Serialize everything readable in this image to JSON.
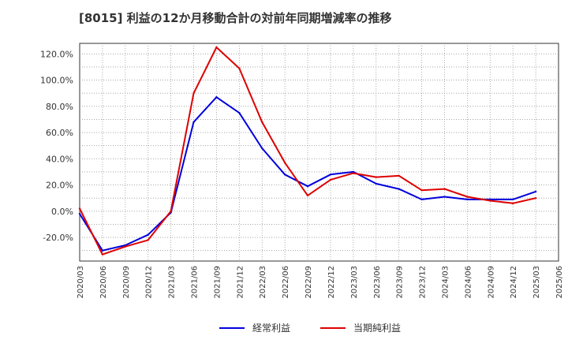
{
  "chart_data": {
    "type": "line",
    "title": "[8015]  利益の12か月移動合計の対前年同期増減率の推移",
    "xlabel": "",
    "ylabel": "",
    "ylim": [
      -38,
      128
    ],
    "grid": true,
    "legend_position": "bottom",
    "y_ticks": [
      "120.0%",
      "100.0%",
      "80.0%",
      "60.0%",
      "40.0%",
      "20.0%",
      "0.0%",
      "-20.0%"
    ],
    "y_tick_values": [
      120,
      100,
      80,
      60,
      40,
      20,
      0,
      -20
    ],
    "x": [
      "2020/03",
      "2020/06",
      "2020/09",
      "2020/12",
      "2021/03",
      "2021/06",
      "2021/09",
      "2021/12",
      "2022/03",
      "2022/06",
      "2022/09",
      "2022/12",
      "2023/03",
      "2023/06",
      "2023/09",
      "2023/12",
      "2024/03",
      "2024/06",
      "2024/09",
      "2024/12",
      "2025/03",
      "2025/06"
    ],
    "series": [
      {
        "name": "経常利益",
        "color": "#0000dd",
        "values": [
          -2,
          -30,
          -26,
          -18,
          -1,
          68,
          87,
          75,
          48,
          28,
          19,
          28,
          30,
          21,
          17,
          9,
          11,
          9,
          9,
          9,
          15,
          null
        ]
      },
      {
        "name": "当期純利益",
        "color": "#dd0000",
        "values": [
          2,
          -33,
          -27,
          -22,
          0,
          90,
          125,
          109,
          68,
          37,
          12,
          24,
          29,
          26,
          27,
          16,
          17,
          11,
          8,
          6,
          10,
          null
        ]
      }
    ]
  }
}
